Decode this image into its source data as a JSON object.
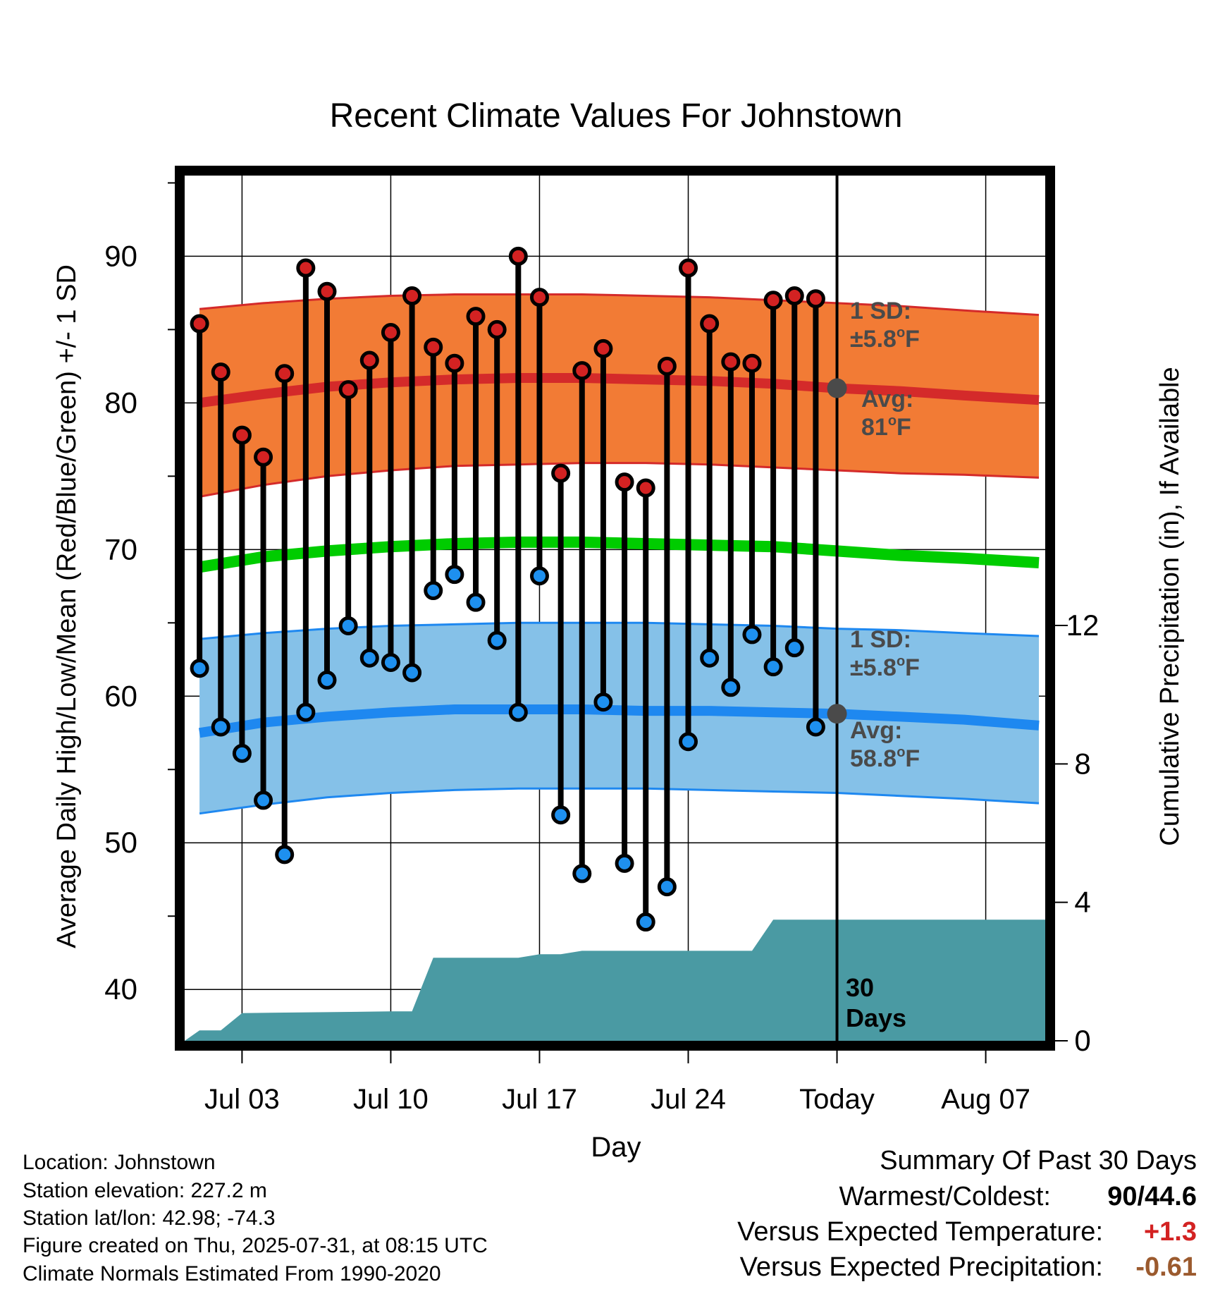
{
  "chart_data": {
    "type": "line",
    "title": "Recent Climate Values For Johnstown",
    "xlabel": "Day",
    "ylabel": "Average Daily High/Low/Mean (Red/Blue/Green) +/- 1 SD",
    "y2label": "Cumulative Precipitation (in), If Available",
    "xlim_days": [
      -30.7,
      9.8
    ],
    "ylim": [
      36.5,
      95.5
    ],
    "y2lim": [
      0,
      25
    ],
    "x_ticks": [
      {
        "day": -28,
        "label": "Jul 03"
      },
      {
        "day": -21,
        "label": "Jul 10"
      },
      {
        "day": -14,
        "label": "Jul 17"
      },
      {
        "day": -7,
        "label": "Jul 24"
      },
      {
        "day": 0,
        "label": "Today"
      },
      {
        "day": 7,
        "label": "Aug 07"
      }
    ],
    "y_ticks": [
      40,
      50,
      60,
      70,
      80,
      90
    ],
    "y2_ticks": [
      0,
      4,
      8,
      12
    ],
    "grid": true,
    "colors": {
      "high_band": "#f27b35",
      "high_line": "#d42a2a",
      "low_band": "#85c1e8",
      "low_line": "#1e88f0",
      "mean_line": "#00cc00",
      "precip": "#4a9aa3",
      "high_marker": "#d32222",
      "low_marker": "#1e90ef",
      "today_marker": "#4a4a4a",
      "positive": "#d32222",
      "negative": "#9b5a2e"
    },
    "normals": {
      "days": [
        -30,
        -27,
        -24,
        -21,
        -18,
        -15,
        -12,
        -9,
        -6,
        -3,
        0,
        3,
        6,
        9.5
      ],
      "high_avg": [
        80.0,
        80.6,
        81.1,
        81.4,
        81.6,
        81.7,
        81.7,
        81.6,
        81.5,
        81.3,
        81.0,
        80.8,
        80.5,
        80.2
      ],
      "high_upper": [
        86.4,
        86.8,
        87.1,
        87.3,
        87.4,
        87.4,
        87.4,
        87.3,
        87.2,
        87.0,
        86.8,
        86.6,
        86.3,
        86.0
      ],
      "high_lower": [
        73.6,
        74.4,
        75.0,
        75.4,
        75.7,
        75.8,
        75.9,
        75.9,
        75.8,
        75.6,
        75.4,
        75.2,
        75.1,
        74.9
      ],
      "mean_avg": [
        68.8,
        69.5,
        69.9,
        70.2,
        70.4,
        70.5,
        70.5,
        70.4,
        70.3,
        70.2,
        69.9,
        69.6,
        69.4,
        69.1
      ],
      "low_avg": [
        57.5,
        58.2,
        58.6,
        58.9,
        59.1,
        59.1,
        59.1,
        59.0,
        59.0,
        58.9,
        58.8,
        58.6,
        58.4,
        58.0
      ],
      "low_upper": [
        63.9,
        64.3,
        64.6,
        64.8,
        64.9,
        65.0,
        65.0,
        65.0,
        64.9,
        64.8,
        64.6,
        64.5,
        64.3,
        64.1
      ],
      "low_lower": [
        52.0,
        52.6,
        53.1,
        53.4,
        53.6,
        53.7,
        53.7,
        53.7,
        53.6,
        53.5,
        53.4,
        53.2,
        53.0,
        52.7
      ]
    },
    "series": [
      {
        "name": "High",
        "values": [
          85.4,
          82.1,
          77.8,
          76.3,
          82.0,
          89.2,
          87.6,
          80.9,
          82.9,
          84.8,
          87.3,
          83.8,
          82.7,
          85.9,
          85.0,
          90.0,
          87.2,
          75.2,
          82.2,
          83.7,
          74.6,
          74.2,
          82.5,
          89.2,
          85.4,
          82.8,
          82.7,
          87.0,
          87.3,
          87.1
        ]
      },
      {
        "name": "Low",
        "values": [
          61.9,
          57.9,
          56.1,
          52.9,
          49.2,
          58.9,
          61.1,
          64.8,
          62.6,
          62.3,
          61.6,
          67.2,
          68.3,
          66.4,
          63.8,
          58.9,
          68.2,
          51.9,
          47.9,
          59.6,
          48.6,
          44.6,
          47.0,
          56.9,
          62.6,
          60.6,
          64.2,
          62.0,
          63.3,
          57.9
        ]
      }
    ],
    "days": [
      -30,
      -29,
      -28,
      -27,
      -26,
      -25,
      -24,
      -23,
      -22,
      -21,
      -20,
      -19,
      -18,
      -17,
      -16,
      -15,
      -14,
      -13,
      -12,
      -11,
      -10,
      -9,
      -8,
      -7,
      -6,
      -5,
      -4,
      -3,
      -2,
      -1
    ],
    "precip_cumulative": {
      "days": [
        -30.7,
        -30.0,
        -29.0,
        -28.0,
        -21.0,
        -20.0,
        -19.0,
        -15.0,
        -14.0,
        -13.0,
        -12.0,
        -8.0,
        -7.0,
        -6.0,
        -5.0,
        -4.0,
        -3.0,
        0.0,
        9.8
      ],
      "values": [
        0.0,
        0.3,
        0.3,
        0.8,
        0.85,
        0.85,
        2.4,
        2.4,
        2.5,
        2.5,
        2.6,
        2.6,
        2.6,
        2.6,
        2.6,
        2.6,
        3.5,
        3.5,
        3.5
      ]
    },
    "annotations": {
      "high_sd": {
        "line1": "1 SD:",
        "line2_prefix": "±5.8",
        "line2_deg": "o",
        "line2_unit": "F"
      },
      "high_avg": {
        "line1": "Avg:",
        "line2_prefix": "81",
        "line2_deg": "o",
        "line2_unit": "F",
        "value": 81.0
      },
      "low_sd": {
        "line1": "1 SD:",
        "line2_prefix": "±5.8",
        "line2_deg": "o",
        "line2_unit": "F"
      },
      "low_avg": {
        "line1": "Avg:",
        "line2_prefix": "58.8",
        "line2_deg": "o",
        "line2_unit": "F",
        "value": 58.8
      },
      "window_line1": "30",
      "window_line2": "Days"
    }
  },
  "station_info": [
    "Location: Johnstown",
    "Station elevation: 227.2 m",
    "Station lat/lon: 42.98; -74.3",
    "Figure created on Thu, 2025-07-31, at 08:15 UTC",
    "Climate Normals Estimated From 1990-2020"
  ],
  "summary": {
    "title": "Summary Of Past 30 Days",
    "warm_cold_label": "Warmest/Coldest:",
    "warm_cold_value": "90/44.6",
    "temp_label": "Versus Expected Temperature:",
    "temp_value": "+1.3",
    "precip_label": "Versus Expected Precipitation:",
    "precip_value": "-0.61"
  }
}
